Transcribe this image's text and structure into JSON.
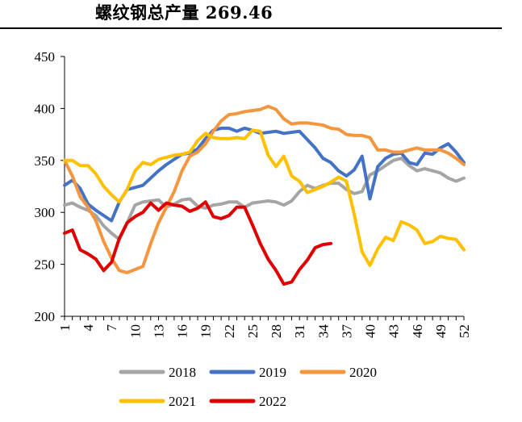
{
  "title": "螺纹钢总产量 269.46",
  "chart_data": {
    "type": "line",
    "title": "螺纹钢总产量 269.46",
    "xlabel": "",
    "ylabel": "",
    "ylim": [
      200,
      450
    ],
    "yticks": [
      200,
      250,
      300,
      350,
      400,
      450
    ],
    "xlim": [
      1,
      52
    ],
    "xticks": [
      1,
      4,
      7,
      10,
      13,
      16,
      19,
      22,
      25,
      28,
      31,
      34,
      37,
      40,
      43,
      46,
      49,
      52
    ],
    "grid": false,
    "legend_position": "bottom",
    "series": [
      {
        "name": "2018",
        "color": "#A5A5A5",
        "x": [
          1,
          2,
          3,
          4,
          5,
          6,
          7,
          8,
          9,
          10,
          11,
          12,
          13,
          14,
          15,
          16,
          17,
          18,
          19,
          20,
          21,
          22,
          23,
          24,
          25,
          26,
          27,
          28,
          29,
          30,
          31,
          32,
          33,
          34,
          35,
          36,
          37,
          38,
          39,
          40,
          41,
          42,
          43,
          44,
          45,
          46,
          47,
          48,
          49,
          50,
          51,
          52
        ],
        "values": [
          307,
          309,
          305,
          302,
          297,
          287,
          280,
          274,
          290,
          307,
          310,
          311,
          312,
          305,
          308,
          312,
          313,
          306,
          304,
          307,
          308,
          310,
          310,
          305,
          309,
          310,
          311,
          310,
          307,
          311,
          320,
          326,
          323,
          326,
          328,
          328,
          322,
          318,
          320,
          336,
          340,
          345,
          350,
          352,
          345,
          340,
          342,
          340,
          338,
          333,
          330,
          333
        ]
      },
      {
        "name": "2019",
        "color": "#4472C4",
        "x": [
          1,
          2,
          3,
          4,
          5,
          6,
          7,
          8,
          9,
          10,
          11,
          12,
          13,
          14,
          15,
          16,
          17,
          18,
          19,
          20,
          21,
          22,
          23,
          24,
          25,
          26,
          27,
          28,
          29,
          30,
          31,
          32,
          33,
          34,
          35,
          36,
          37,
          38,
          39,
          40,
          41,
          42,
          43,
          44,
          45,
          46,
          47,
          48,
          49,
          50,
          51,
          52
        ],
        "values": [
          326,
          331,
          323,
          308,
          302,
          297,
          292,
          310,
          322,
          324,
          326,
          333,
          340,
          346,
          351,
          356,
          357,
          361,
          371,
          379,
          381,
          381,
          378,
          381,
          379,
          376,
          377,
          378,
          376,
          377,
          378,
          370,
          362,
          352,
          348,
          340,
          335,
          341,
          354,
          313,
          344,
          352,
          356,
          357,
          348,
          346,
          357,
          356,
          362,
          366,
          358,
          348
        ]
      },
      {
        "name": "2020",
        "color": "#F4963E",
        "x": [
          1,
          2,
          3,
          4,
          5,
          6,
          7,
          8,
          9,
          10,
          11,
          12,
          13,
          14,
          15,
          16,
          17,
          18,
          19,
          20,
          21,
          22,
          23,
          24,
          25,
          26,
          27,
          28,
          29,
          30,
          31,
          32,
          33,
          34,
          35,
          36,
          37,
          38,
          39,
          40,
          41,
          42,
          43,
          44,
          45,
          46,
          47,
          48,
          49,
          50,
          51,
          52
        ],
        "values": [
          350,
          335,
          315,
          305,
          292,
          272,
          256,
          244,
          242,
          245,
          248,
          270,
          290,
          305,
          320,
          340,
          354,
          358,
          366,
          378,
          388,
          394,
          395,
          397,
          398,
          399,
          402,
          399,
          390,
          385,
          386,
          386,
          385,
          384,
          381,
          380,
          375,
          374,
          374,
          372,
          360,
          360,
          358,
          358,
          360,
          362,
          360,
          360,
          360,
          357,
          352,
          346
        ]
      },
      {
        "name": "2021",
        "color": "#FFC000",
        "x": [
          1,
          2,
          3,
          4,
          5,
          6,
          7,
          8,
          9,
          10,
          11,
          12,
          13,
          14,
          15,
          16,
          17,
          18,
          19,
          20,
          21,
          22,
          23,
          24,
          25,
          26,
          27,
          28,
          29,
          30,
          31,
          32,
          33,
          34,
          35,
          36,
          37,
          38,
          39,
          40,
          41,
          42,
          43,
          44,
          45,
          46,
          47,
          48,
          49,
          50,
          51,
          52
        ],
        "values": [
          350,
          350,
          345,
          345,
          337,
          325,
          317,
          310,
          322,
          340,
          348,
          346,
          351,
          353,
          355,
          356,
          358,
          369,
          376,
          372,
          371,
          371,
          372,
          371,
          379,
          378,
          355,
          344,
          354,
          335,
          330,
          319,
          322,
          325,
          329,
          334,
          330,
          298,
          262,
          249,
          265,
          276,
          273,
          291,
          288,
          283,
          270,
          272,
          277,
          275,
          274,
          264
        ]
      },
      {
        "name": "2022",
        "color": "#E00000",
        "x": [
          1,
          2,
          3,
          4,
          5,
          6,
          7,
          8,
          9,
          10,
          11,
          12,
          13,
          14,
          15,
          16,
          17,
          18,
          19,
          20,
          21,
          22,
          23,
          24,
          25,
          26,
          27,
          28,
          29,
          30,
          31,
          32,
          33,
          34,
          35
        ],
        "values": [
          280,
          283,
          264,
          260,
          255,
          244,
          252,
          275,
          290,
          296,
          300,
          309,
          302,
          309,
          307,
          306,
          301,
          304,
          310,
          296,
          294,
          297,
          305,
          305,
          288,
          270,
          255,
          244,
          231,
          233,
          245,
          254,
          266,
          269,
          270
        ]
      }
    ]
  }
}
